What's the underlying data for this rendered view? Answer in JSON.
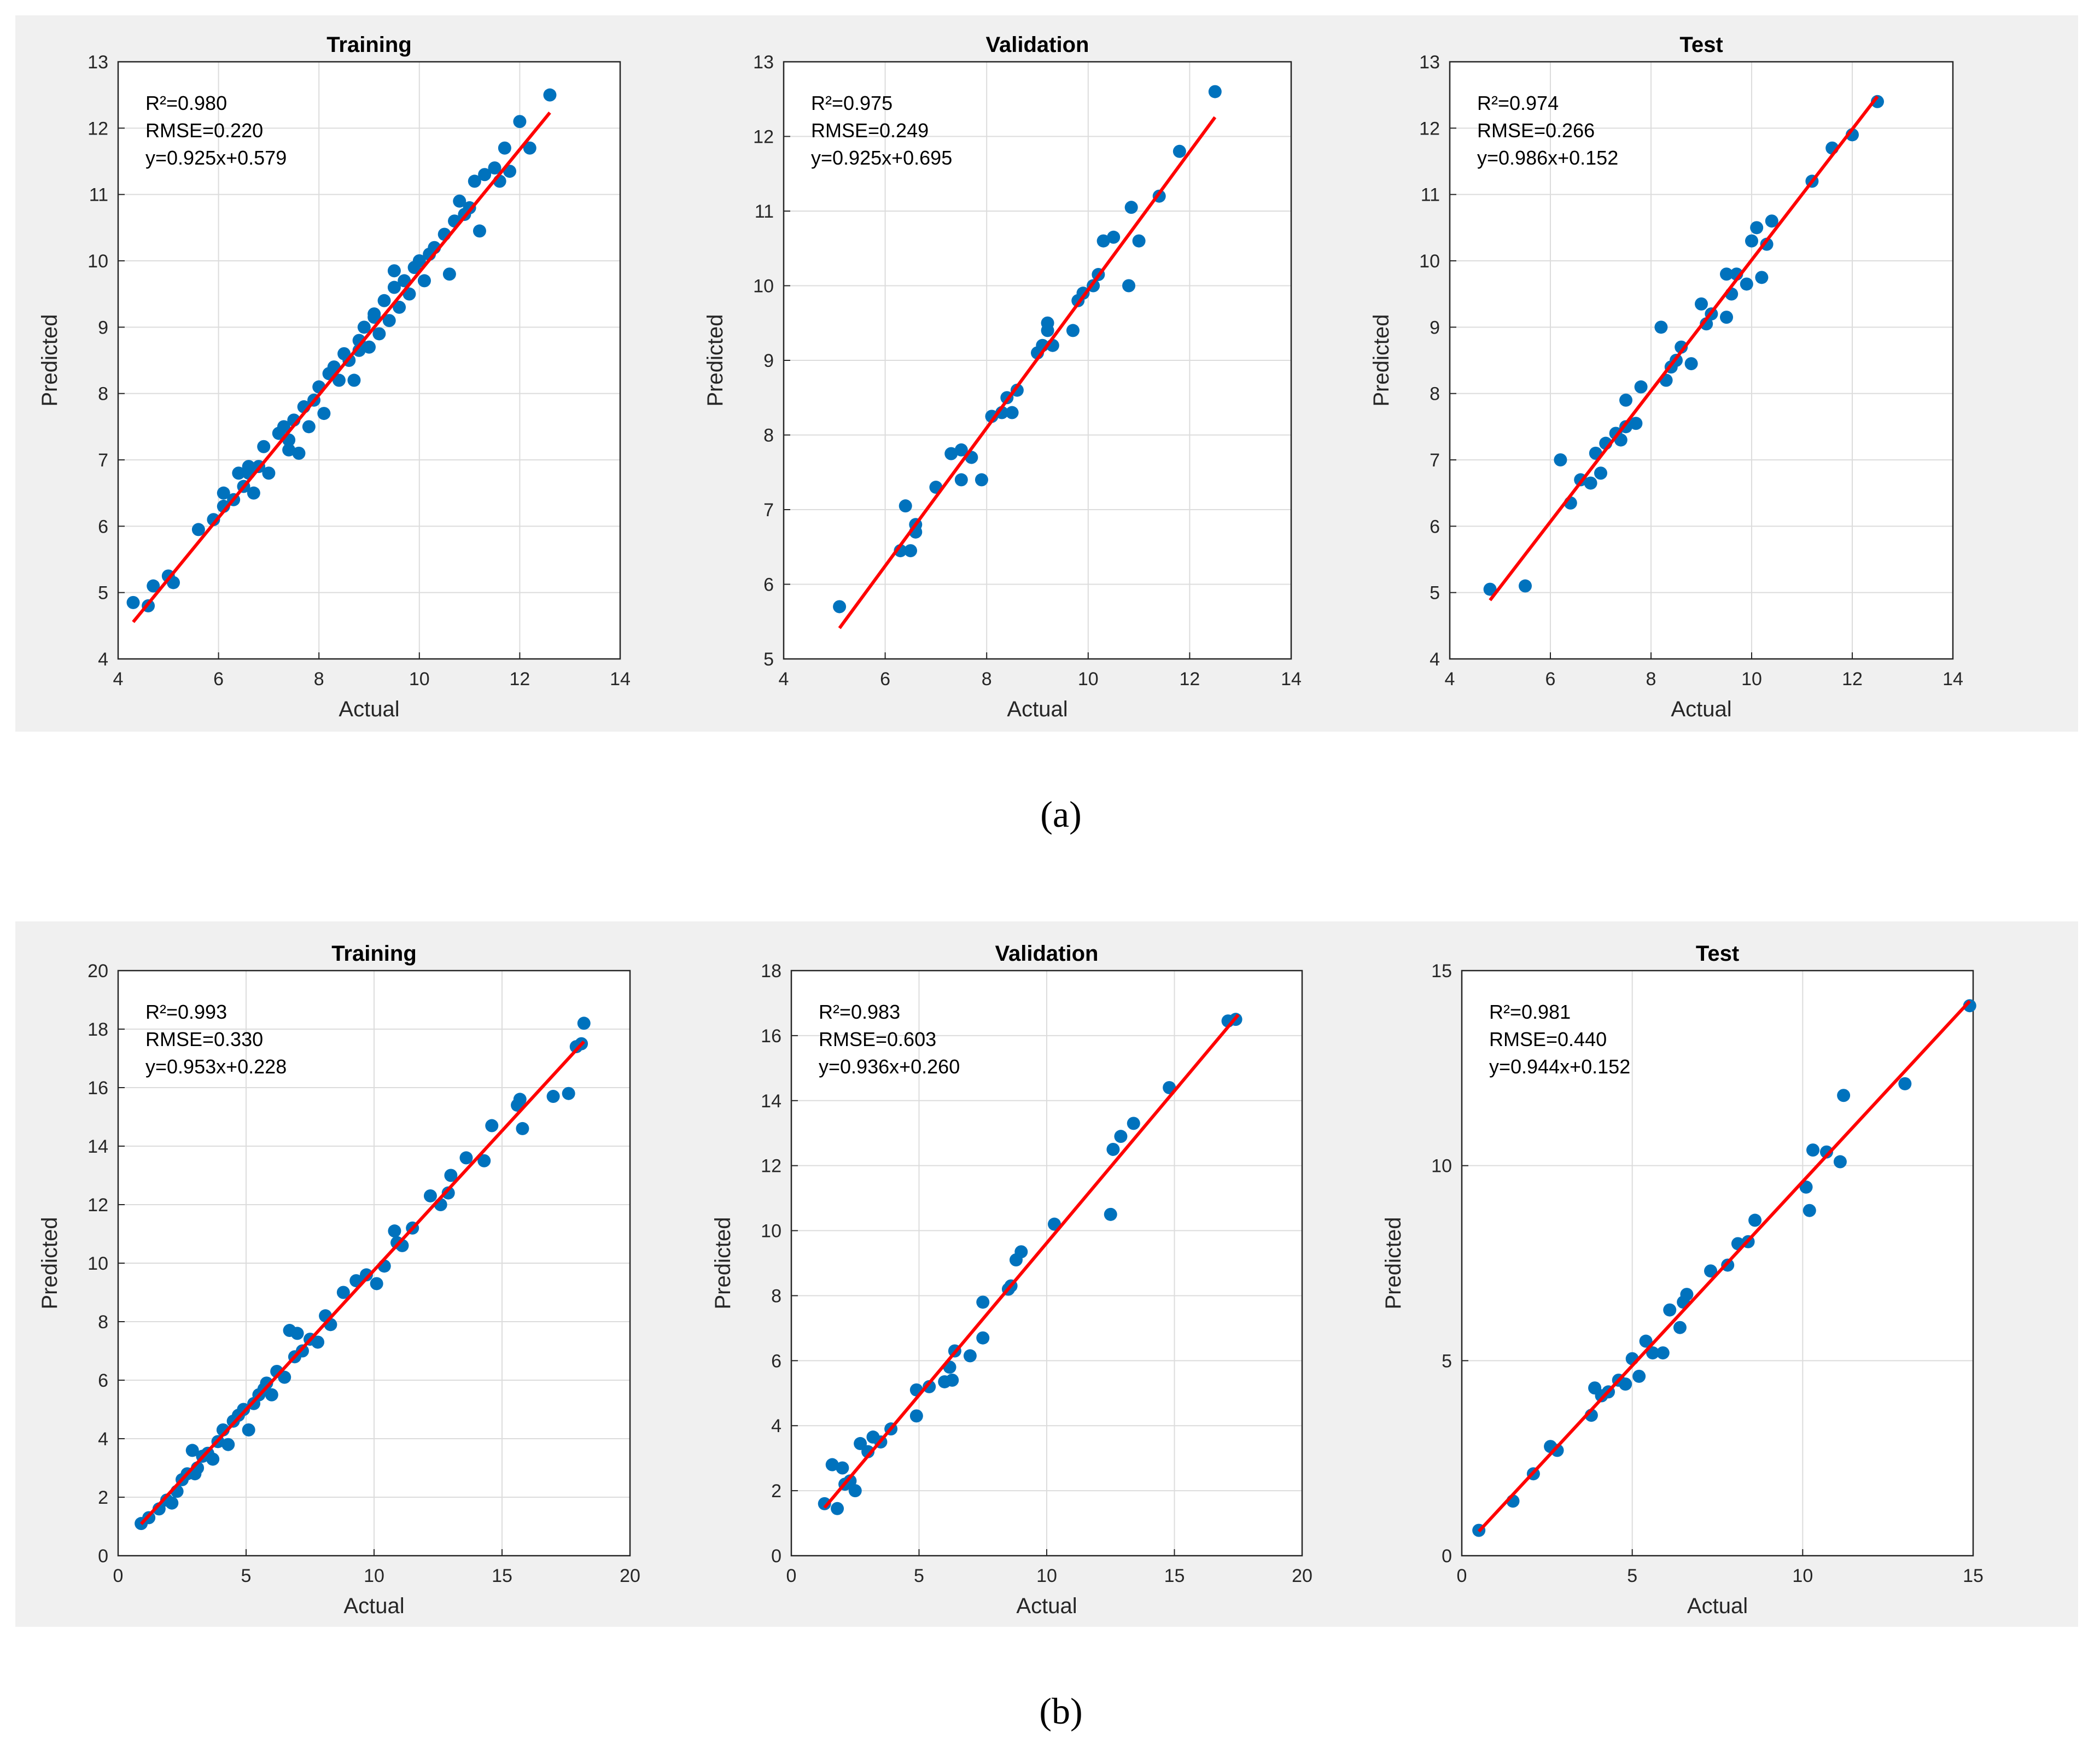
{
  "colors": {
    "panel_bg": "#f0f0f0",
    "plot_bg": "#ffffff",
    "points": "#0072bd",
    "fit_line": "#ff0000",
    "grid": "#dcdcdc",
    "axis": "#262626"
  },
  "figure": {
    "captions": [
      "(a)",
      "(b)"
    ]
  },
  "chart_data": [
    {
      "type": "scatter",
      "group": "a",
      "title": "Training",
      "xlabel": "Actual",
      "ylabel": "Predicted",
      "xlim": [
        4,
        14
      ],
      "ylim": [
        4,
        13
      ],
      "xticks": [
        4,
        6,
        8,
        10,
        12,
        14
      ],
      "yticks": [
        4,
        5,
        6,
        7,
        8,
        9,
        10,
        11,
        12,
        13
      ],
      "xtick_labels": [
        "4",
        "6",
        "8",
        "10",
        "12",
        "14"
      ],
      "ytick_labels": [
        "4",
        "5",
        "6",
        "7",
        "8",
        "9",
        "10",
        "11",
        "12",
        "13"
      ],
      "annotations": [
        "R²=0.980",
        "RMSE=0.220",
        "y=0.925x+0.579"
      ],
      "fit": {
        "slope": 0.925,
        "intercept": 0.579,
        "x_range": [
          4.3,
          12.6
        ]
      },
      "points": [
        [
          4.3,
          4.85
        ],
        [
          4.6,
          4.8
        ],
        [
          4.7,
          5.1
        ],
        [
          5.0,
          5.25
        ],
        [
          5.1,
          5.15
        ],
        [
          5.6,
          5.95
        ],
        [
          5.9,
          6.1
        ],
        [
          6.1,
          6.3
        ],
        [
          6.1,
          6.5
        ],
        [
          6.3,
          6.4
        ],
        [
          6.4,
          6.8
        ],
        [
          6.5,
          6.6
        ],
        [
          6.6,
          6.9
        ],
        [
          6.7,
          6.5
        ],
        [
          6.8,
          6.9
        ],
        [
          6.9,
          7.2
        ],
        [
          7.0,
          6.8
        ],
        [
          7.2,
          7.4
        ],
        [
          7.3,
          7.5
        ],
        [
          7.4,
          7.3
        ],
        [
          7.5,
          7.6
        ],
        [
          7.6,
          7.1
        ],
        [
          7.7,
          7.8
        ],
        [
          7.8,
          7.5
        ],
        [
          7.9,
          7.9
        ],
        [
          8.0,
          8.1
        ],
        [
          8.1,
          7.7
        ],
        [
          8.2,
          8.3
        ],
        [
          8.3,
          8.4
        ],
        [
          8.4,
          8.2
        ],
        [
          8.5,
          8.6
        ],
        [
          8.6,
          8.5
        ],
        [
          8.7,
          8.2
        ],
        [
          8.8,
          8.8
        ],
        [
          8.9,
          9.0
        ],
        [
          9.0,
          8.7
        ],
        [
          9.1,
          9.2
        ],
        [
          9.2,
          8.9
        ],
        [
          9.3,
          9.4
        ],
        [
          9.4,
          9.1
        ],
        [
          9.5,
          9.6
        ],
        [
          9.6,
          9.3
        ],
        [
          9.7,
          9.7
        ],
        [
          9.8,
          9.5
        ],
        [
          9.9,
          9.9
        ],
        [
          10.0,
          10.0
        ],
        [
          10.1,
          9.7
        ],
        [
          10.2,
          10.1
        ],
        [
          10.3,
          10.2
        ],
        [
          10.5,
          10.4
        ],
        [
          10.6,
          9.8
        ],
        [
          10.7,
          10.6
        ],
        [
          10.8,
          10.9
        ],
        [
          10.9,
          10.7
        ],
        [
          11.0,
          10.8
        ],
        [
          11.1,
          11.2
        ],
        [
          11.2,
          10.45
        ],
        [
          11.3,
          11.3
        ],
        [
          11.5,
          11.4
        ],
        [
          11.6,
          11.2
        ],
        [
          11.7,
          11.7
        ],
        [
          11.8,
          11.35
        ],
        [
          12.0,
          12.1
        ],
        [
          12.2,
          11.7
        ],
        [
          12.6,
          12.5
        ],
        [
          9.5,
          9.85
        ],
        [
          9.1,
          9.15
        ],
        [
          8.8,
          8.65
        ],
        [
          7.4,
          7.15
        ],
        [
          6.6,
          6.8
        ]
      ]
    },
    {
      "type": "scatter",
      "group": "a",
      "title": "Validation",
      "xlabel": "Actual",
      "ylabel": "Predicted",
      "xlim": [
        4,
        14
      ],
      "ylim": [
        5,
        13
      ],
      "xticks": [
        4,
        6,
        8,
        10,
        12,
        14
      ],
      "yticks": [
        5,
        6,
        7,
        8,
        9,
        10,
        11,
        12,
        13
      ],
      "xtick_labels": [
        "4",
        "6",
        "8",
        "10",
        "12",
        "14"
      ],
      "ytick_labels": [
        "5",
        "6",
        "7",
        "8",
        "9",
        "10",
        "11",
        "12",
        "13"
      ],
      "annotations": [
        "R²=0.975",
        "RMSE=0.249",
        "y=0.925x+0.695"
      ],
      "fit": {
        "slope": 0.925,
        "intercept": 0.695,
        "x_range": [
          5.1,
          12.5
        ]
      },
      "points": [
        [
          5.1,
          5.7
        ],
        [
          6.3,
          6.45
        ],
        [
          6.4,
          7.05
        ],
        [
          6.5,
          6.45
        ],
        [
          6.6,
          6.8
        ],
        [
          6.6,
          6.7
        ],
        [
          7.0,
          7.3
        ],
        [
          7.3,
          7.75
        ],
        [
          7.5,
          7.4
        ],
        [
          7.5,
          7.8
        ],
        [
          7.7,
          7.7
        ],
        [
          7.9,
          7.4
        ],
        [
          8.1,
          8.25
        ],
        [
          8.3,
          8.3
        ],
        [
          8.4,
          8.5
        ],
        [
          8.5,
          8.3
        ],
        [
          8.6,
          8.6
        ],
        [
          9.0,
          9.1
        ],
        [
          9.1,
          9.2
        ],
        [
          9.2,
          9.4
        ],
        [
          9.3,
          9.2
        ],
        [
          9.2,
          9.5
        ],
        [
          9.7,
          9.4
        ],
        [
          9.8,
          9.8
        ],
        [
          9.9,
          9.9
        ],
        [
          10.1,
          10.0
        ],
        [
          10.2,
          10.15
        ],
        [
          10.3,
          10.6
        ],
        [
          10.5,
          10.65
        ],
        [
          10.8,
          10.0
        ],
        [
          10.85,
          11.05
        ],
        [
          11.0,
          10.6
        ],
        [
          11.4,
          11.2
        ],
        [
          11.8,
          11.8
        ],
        [
          12.5,
          12.6
        ]
      ]
    },
    {
      "type": "scatter",
      "group": "a",
      "title": "Test",
      "xlabel": "Actual",
      "ylabel": "Predicted",
      "xlim": [
        4,
        14
      ],
      "ylim": [
        4,
        13
      ],
      "xticks": [
        4,
        6,
        8,
        10,
        12,
        14
      ],
      "yticks": [
        4,
        5,
        6,
        7,
        8,
        9,
        10,
        11,
        12,
        13
      ],
      "xtick_labels": [
        "4",
        "6",
        "8",
        "10",
        "12",
        "14"
      ],
      "ytick_labels": [
        "4",
        "5",
        "6",
        "7",
        "8",
        "9",
        "10",
        "11",
        "12",
        "13"
      ],
      "annotations": [
        "R²=0.974",
        "RMSE=0.266",
        "y=0.986x+0.152"
      ],
      "fit": {
        "slope": 0.986,
        "intercept": 0.152,
        "x_range": [
          4.8,
          12.5
        ]
      },
      "points": [
        [
          4.8,
          5.05
        ],
        [
          5.5,
          5.1
        ],
        [
          6.2,
          7.0
        ],
        [
          6.4,
          6.35
        ],
        [
          6.6,
          6.7
        ],
        [
          6.8,
          6.65
        ],
        [
          6.9,
          7.1
        ],
        [
          7.0,
          6.8
        ],
        [
          7.1,
          7.25
        ],
        [
          7.3,
          7.4
        ],
        [
          7.4,
          7.3
        ],
        [
          7.5,
          7.5
        ],
        [
          7.5,
          7.9
        ],
        [
          7.7,
          7.55
        ],
        [
          7.8,
          8.1
        ],
        [
          8.2,
          9.0
        ],
        [
          8.3,
          8.2
        ],
        [
          8.4,
          8.4
        ],
        [
          8.5,
          8.5
        ],
        [
          8.6,
          8.7
        ],
        [
          8.8,
          8.45
        ],
        [
          9.0,
          9.35
        ],
        [
          9.1,
          9.05
        ],
        [
          9.2,
          9.2
        ],
        [
          9.5,
          9.15
        ],
        [
          9.5,
          9.8
        ],
        [
          9.6,
          9.5
        ],
        [
          9.7,
          9.8
        ],
        [
          9.9,
          9.65
        ],
        [
          10.0,
          10.3
        ],
        [
          10.1,
          10.5
        ],
        [
          10.2,
          9.75
        ],
        [
          10.3,
          10.25
        ],
        [
          10.4,
          10.6
        ],
        [
          11.2,
          11.2
        ],
        [
          11.6,
          11.7
        ],
        [
          12.0,
          11.9
        ],
        [
          12.5,
          12.4
        ]
      ]
    },
    {
      "type": "scatter",
      "group": "b",
      "title": "Training",
      "xlabel": "Actual",
      "ylabel": "Predicted",
      "xlim": [
        0,
        20
      ],
      "ylim": [
        0,
        20
      ],
      "xticks": [
        0,
        5,
        10,
        15,
        20
      ],
      "yticks": [
        0,
        2,
        4,
        6,
        8,
        10,
        12,
        14,
        16,
        18,
        20
      ],
      "xtick_labels": [
        "0",
        "5",
        "10",
        "15",
        "20"
      ],
      "ytick_labels": [
        "0",
        "2",
        "4",
        "6",
        "8",
        "10",
        "12",
        "14",
        "16",
        "18",
        "20"
      ],
      "annotations": [
        "R²=0.993",
        "RMSE=0.330",
        "y=0.953x+0.228"
      ],
      "fit": {
        "slope": 0.953,
        "intercept": 0.228,
        "x_range": [
          0.9,
          18.2
        ]
      },
      "points": [
        [
          0.9,
          1.1
        ],
        [
          1.2,
          1.3
        ],
        [
          1.6,
          1.6
        ],
        [
          1.9,
          1.9
        ],
        [
          2.1,
          1.8
        ],
        [
          2.3,
          2.2
        ],
        [
          2.5,
          2.6
        ],
        [
          2.7,
          2.8
        ],
        [
          2.9,
          3.6
        ],
        [
          3.1,
          3.0
        ],
        [
          3.3,
          3.4
        ],
        [
          3.5,
          3.5
        ],
        [
          3.7,
          3.3
        ],
        [
          3.9,
          3.9
        ],
        [
          4.1,
          4.3
        ],
        [
          4.3,
          3.8
        ],
        [
          4.5,
          4.6
        ],
        [
          4.7,
          4.8
        ],
        [
          4.9,
          5.0
        ],
        [
          5.1,
          4.3
        ],
        [
          5.3,
          5.2
        ],
        [
          5.5,
          5.5
        ],
        [
          5.7,
          5.7
        ],
        [
          6.0,
          5.5
        ],
        [
          6.2,
          6.3
        ],
        [
          6.5,
          6.1
        ],
        [
          6.7,
          7.7
        ],
        [
          6.9,
          6.8
        ],
        [
          7.2,
          7.0
        ],
        [
          7.5,
          7.4
        ],
        [
          7.8,
          7.3
        ],
        [
          8.1,
          8.2
        ],
        [
          8.3,
          7.9
        ],
        [
          8.8,
          9.0
        ],
        [
          9.3,
          9.4
        ],
        [
          9.7,
          9.6
        ],
        [
          10.1,
          9.3
        ],
        [
          10.4,
          9.9
        ],
        [
          10.8,
          11.1
        ],
        [
          11.1,
          10.6
        ],
        [
          11.5,
          11.2
        ],
        [
          12.2,
          12.3
        ],
        [
          12.6,
          12.0
        ],
        [
          13.0,
          13.0
        ],
        [
          13.6,
          13.6
        ],
        [
          14.3,
          13.5
        ],
        [
          14.6,
          14.7
        ],
        [
          15.6,
          15.4
        ],
        [
          15.7,
          15.6
        ],
        [
          15.8,
          14.6
        ],
        [
          17.0,
          15.7
        ],
        [
          17.6,
          15.8
        ],
        [
          17.9,
          17.4
        ],
        [
          18.1,
          17.5
        ],
        [
          18.2,
          18.2
        ],
        [
          7.0,
          7.6
        ],
        [
          5.8,
          5.9
        ],
        [
          3.0,
          2.8
        ],
        [
          10.9,
          10.7
        ],
        [
          12.9,
          12.4
        ]
      ]
    },
    {
      "type": "scatter",
      "group": "b",
      "title": "Validation",
      "xlabel": "Actual",
      "ylabel": "Predicted",
      "xlim": [
        0,
        20
      ],
      "ylim": [
        0,
        18
      ],
      "xticks": [
        0,
        5,
        10,
        15,
        20
      ],
      "yticks": [
        0,
        2,
        4,
        6,
        8,
        10,
        12,
        14,
        16,
        18
      ],
      "xtick_labels": [
        "0",
        "5",
        "10",
        "15",
        "20"
      ],
      "ytick_labels": [
        "0",
        "2",
        "4",
        "6",
        "8",
        "10",
        "12",
        "14",
        "16",
        "18"
      ],
      "annotations": [
        "R²=0.983",
        "RMSE=0.603",
        "y=0.936x+0.260"
      ],
      "fit": {
        "slope": 0.936,
        "intercept": 0.26,
        "x_range": [
          1.3,
          17.5
        ]
      },
      "points": [
        [
          1.3,
          1.6
        ],
        [
          1.6,
          2.8
        ],
        [
          1.8,
          1.45
        ],
        [
          2.0,
          2.7
        ],
        [
          2.1,
          2.2
        ],
        [
          2.3,
          2.3
        ],
        [
          2.5,
          2.0
        ],
        [
          2.7,
          3.45
        ],
        [
          3.0,
          3.2
        ],
        [
          3.2,
          3.65
        ],
        [
          3.5,
          3.5
        ],
        [
          3.9,
          3.9
        ],
        [
          4.9,
          4.3
        ],
        [
          4.9,
          5.1
        ],
        [
          5.4,
          5.2
        ],
        [
          6.0,
          5.35
        ],
        [
          6.2,
          5.8
        ],
        [
          6.3,
          5.4
        ],
        [
          6.4,
          6.3
        ],
        [
          7.0,
          6.15
        ],
        [
          7.5,
          6.7
        ],
        [
          7.5,
          7.8
        ],
        [
          8.5,
          8.2
        ],
        [
          8.6,
          8.3
        ],
        [
          8.8,
          9.1
        ],
        [
          9.0,
          9.35
        ],
        [
          10.3,
          10.2
        ],
        [
          12.5,
          10.5
        ],
        [
          12.6,
          12.5
        ],
        [
          12.9,
          12.9
        ],
        [
          13.4,
          13.3
        ],
        [
          14.8,
          14.4
        ],
        [
          17.1,
          16.45
        ],
        [
          17.4,
          16.5
        ]
      ]
    },
    {
      "type": "scatter",
      "group": "b",
      "title": "Test",
      "xlabel": "Actual",
      "ylabel": "Predicted",
      "xlim": [
        0,
        15
      ],
      "ylim": [
        0,
        15
      ],
      "xticks": [
        0,
        5,
        10,
        15
      ],
      "yticks": [
        0,
        5,
        10,
        15
      ],
      "xtick_labels": [
        "0",
        "5",
        "10",
        "15"
      ],
      "ytick_labels": [
        "0",
        "5",
        "10",
        "15"
      ],
      "annotations": [
        "R²=0.981",
        "RMSE=0.440",
        "y=0.944x+0.152"
      ],
      "fit": {
        "slope": 0.944,
        "intercept": 0.152,
        "x_range": [
          0.5,
          14.9
        ]
      },
      "points": [
        [
          0.5,
          0.65
        ],
        [
          1.5,
          1.4
        ],
        [
          2.1,
          2.1
        ],
        [
          2.6,
          2.8
        ],
        [
          2.8,
          2.7
        ],
        [
          3.8,
          3.6
        ],
        [
          3.9,
          4.3
        ],
        [
          4.1,
          4.1
        ],
        [
          4.3,
          4.2
        ],
        [
          4.6,
          4.5
        ],
        [
          4.8,
          4.4
        ],
        [
          5.0,
          5.05
        ],
        [
          5.2,
          4.6
        ],
        [
          5.4,
          5.5
        ],
        [
          5.6,
          5.2
        ],
        [
          5.9,
          5.2
        ],
        [
          6.1,
          6.3
        ],
        [
          6.4,
          5.85
        ],
        [
          6.5,
          6.5
        ],
        [
          6.6,
          6.7
        ],
        [
          7.3,
          7.3
        ],
        [
          7.8,
          7.45
        ],
        [
          8.1,
          8.0
        ],
        [
          8.4,
          8.05
        ],
        [
          8.6,
          8.6
        ],
        [
          10.1,
          9.45
        ],
        [
          10.2,
          8.85
        ],
        [
          10.3,
          10.4
        ],
        [
          10.7,
          10.35
        ],
        [
          11.1,
          10.1
        ],
        [
          11.2,
          11.8
        ],
        [
          13.0,
          12.1
        ],
        [
          14.9,
          14.1
        ]
      ]
    }
  ]
}
